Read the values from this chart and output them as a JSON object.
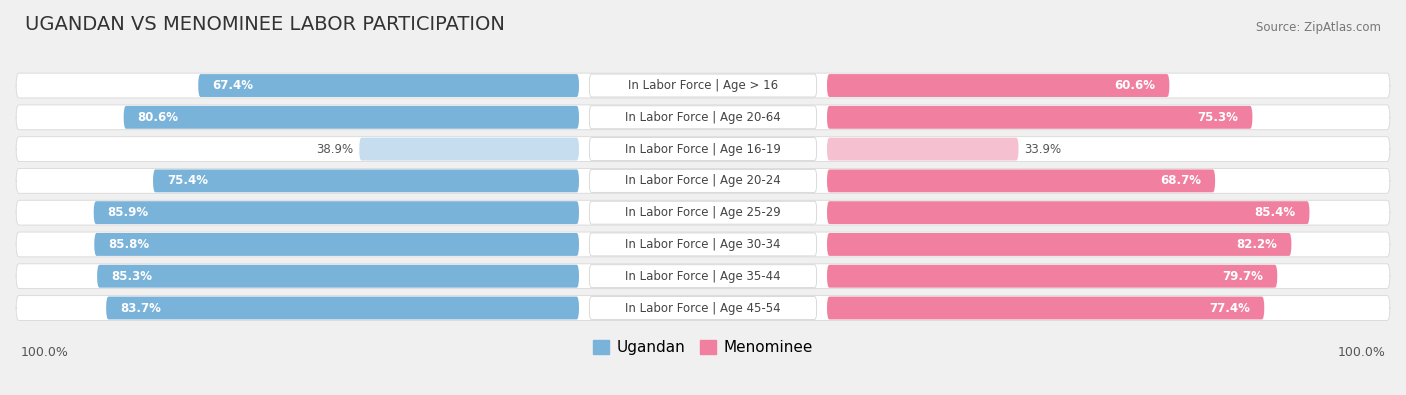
{
  "title": "UGANDAN VS MENOMINEE LABOR PARTICIPATION",
  "source": "Source: ZipAtlas.com",
  "categories": [
    "In Labor Force | Age > 16",
    "In Labor Force | Age 20-64",
    "In Labor Force | Age 16-19",
    "In Labor Force | Age 20-24",
    "In Labor Force | Age 25-29",
    "In Labor Force | Age 30-34",
    "In Labor Force | Age 35-44",
    "In Labor Force | Age 45-54"
  ],
  "ugandan": [
    67.4,
    80.6,
    38.9,
    75.4,
    85.9,
    85.8,
    85.3,
    83.7
  ],
  "menominee": [
    60.6,
    75.3,
    33.9,
    68.7,
    85.4,
    82.2,
    79.7,
    77.4
  ],
  "ugandan_color": "#7ab3d9",
  "ugandan_color_light": "#c5ddef",
  "menominee_color": "#f07fa0",
  "menominee_color_light": "#f5c0cf",
  "bg_color": "#f0f0f0",
  "row_bg": "#f8f8f8",
  "max_val": 100.0,
  "label_fontsize": 8.5,
  "title_fontsize": 14,
  "legend_fontsize": 11,
  "value_fontsize": 8.5
}
